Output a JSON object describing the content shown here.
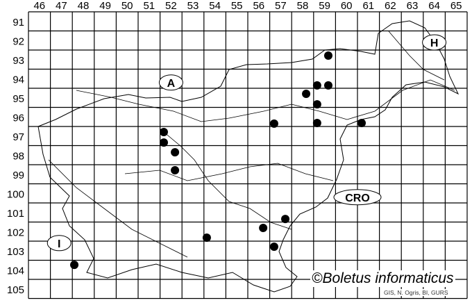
{
  "map": {
    "columns": [
      "46",
      "47",
      "48",
      "49",
      "50",
      "51",
      "52",
      "53",
      "54",
      "55",
      "56",
      "57",
      "58",
      "59",
      "60",
      "61",
      "62",
      "63",
      "64",
      "65"
    ],
    "rows": [
      "91",
      "92",
      "93",
      "94",
      "95",
      "96",
      "97",
      "98",
      "99",
      "100",
      "101",
      "102",
      "103",
      "104",
      "105"
    ],
    "country_labels": [
      {
        "code": "A",
        "col": 52.5,
        "row": 94.7
      },
      {
        "code": "H",
        "col": 64.5,
        "row": 92.6
      },
      {
        "code": "CRO",
        "col": 61.0,
        "row": 100.7
      },
      {
        "code": "I",
        "col": 47.4,
        "row": 103.1
      }
    ],
    "records": [
      {
        "col": 59.67,
        "row": 93.29
      },
      {
        "col": 59.16,
        "row": 94.85
      },
      {
        "col": 59.67,
        "row": 94.85
      },
      {
        "col": 58.66,
        "row": 95.29
      },
      {
        "col": 59.16,
        "row": 95.84
      },
      {
        "col": 57.2,
        "row": 96.85
      },
      {
        "col": 59.16,
        "row": 96.82
      },
      {
        "col": 61.19,
        "row": 96.82
      },
      {
        "col": 52.17,
        "row": 97.29
      },
      {
        "col": 52.17,
        "row": 97.84
      },
      {
        "col": 52.68,
        "row": 98.35
      },
      {
        "col": 52.68,
        "row": 99.29
      },
      {
        "col": 54.13,
        "row": 102.82
      },
      {
        "col": 56.7,
        "row": 102.31
      },
      {
        "col": 57.71,
        "row": 101.84
      },
      {
        "col": 57.2,
        "row": 103.29
      },
      {
        "col": 48.09,
        "row": 104.24
      }
    ],
    "record_color": "#000000"
  },
  "copyright": "©Boletus informaticus",
  "credits": "GIS, N. Ogris, BI, GURS"
}
